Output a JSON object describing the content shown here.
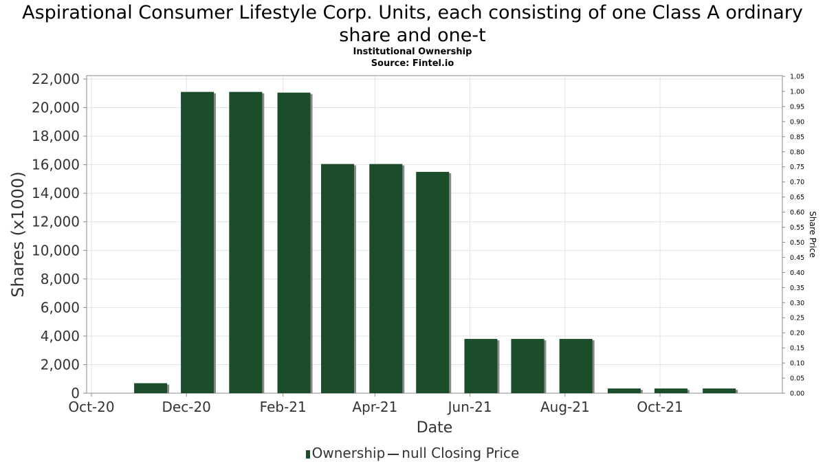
{
  "title": "Aspirational Consumer Lifestyle Corp. Units, each consisting of one Class A ordinary share and one-t",
  "subtitle": "Institutional Ownership",
  "source": "Source: Fintel.io",
  "legend": {
    "ownership": "Ownership",
    "price": "null Closing Price"
  },
  "chart_data": {
    "type": "bar",
    "xlabel": "Date",
    "ylabel": "Shares (x1000)",
    "y2label": "Share Price",
    "ylim": [
      0,
      22000
    ],
    "y2lim": [
      0,
      1.05
    ],
    "grid": true,
    "legend_position": "bottom",
    "xlim": [
      "2020-10-01",
      "2021-12-15"
    ],
    "x_ticks": [
      {
        "label": "Oct-20",
        "date": "2020-10-01"
      },
      {
        "label": "Dec-20",
        "date": "2020-12-01"
      },
      {
        "label": "Feb-21",
        "date": "2021-02-01"
      },
      {
        "label": "Apr-21",
        "date": "2021-04-01"
      },
      {
        "label": "Jun-21",
        "date": "2021-06-01"
      },
      {
        "label": "Aug-21",
        "date": "2021-08-01"
      },
      {
        "label": "Oct-21",
        "date": "2021-10-01"
      }
    ],
    "y_ticks": [
      "0",
      "2,000",
      "4,000",
      "6,000",
      "8,000",
      "10,000",
      "12,000",
      "14,000",
      "16,000",
      "18,000",
      "20,000",
      "22,000"
    ],
    "y2_ticks": [
      "0.00",
      "0.05",
      "0.10",
      "0.15",
      "0.20",
      "0.25",
      "0.30",
      "0.35",
      "0.40",
      "0.45",
      "0.50",
      "0.55",
      "0.60",
      "0.65",
      "0.70",
      "0.75",
      "0.80",
      "0.85",
      "0.90",
      "0.95",
      "1.00",
      "1.05"
    ],
    "series": [
      {
        "name": "Ownership",
        "color": "#1b4d2a",
        "points": [
          {
            "date": "2020-11-08",
            "value": 700
          },
          {
            "date": "2020-12-08",
            "value": 21100
          },
          {
            "date": "2021-01-08",
            "value": 21100
          },
          {
            "date": "2021-02-08",
            "value": 21050
          },
          {
            "date": "2021-03-08",
            "value": 16050
          },
          {
            "date": "2021-04-08",
            "value": 16050
          },
          {
            "date": "2021-05-08",
            "value": 15500
          },
          {
            "date": "2021-06-08",
            "value": 3800
          },
          {
            "date": "2021-07-08",
            "value": 3800
          },
          {
            "date": "2021-08-08",
            "value": 3800
          },
          {
            "date": "2021-09-08",
            "value": 330
          },
          {
            "date": "2021-10-08",
            "value": 330
          },
          {
            "date": "2021-11-08",
            "value": 330
          }
        ]
      }
    ]
  }
}
